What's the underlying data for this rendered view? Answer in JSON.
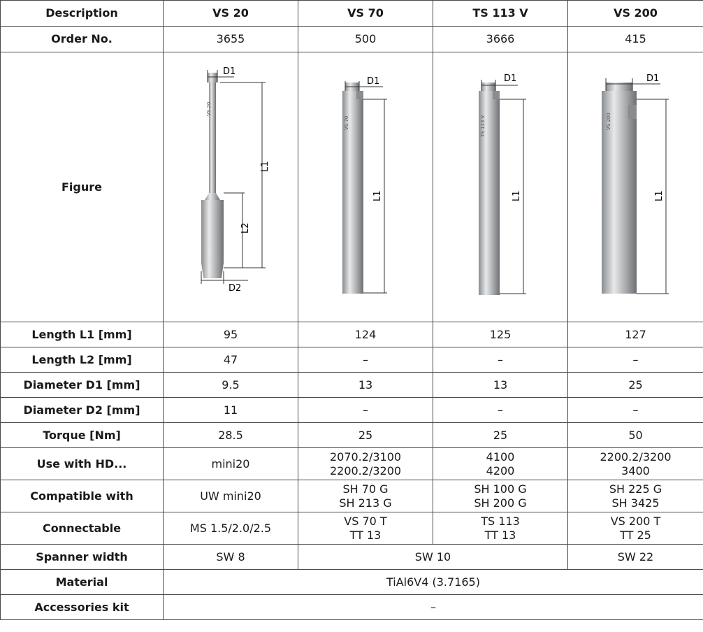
{
  "headers": [
    "Description",
    "VS 20",
    "VS 70",
    "TS 113 V",
    "VS 200"
  ],
  "order_no": {
    "label": "Order No.",
    "values": [
      "3655",
      "500",
      "3666",
      "415"
    ]
  },
  "figure": {
    "label": "Figure",
    "dim_labels": {
      "d1": "D1",
      "d2": "D2",
      "l1": "L1",
      "l2": "L2"
    },
    "engravings": {
      "vs20": "VS 20",
      "vs70": "VS 70",
      "ts113": "TS 113 V",
      "vs200": "VS 200"
    }
  },
  "rows": {
    "length_l1": {
      "label": "Length L1 [mm]",
      "values": [
        "95",
        "124",
        "125",
        "127"
      ]
    },
    "length_l2": {
      "label": "Length L2 [mm]",
      "values": [
        "47",
        "–",
        "–",
        "–"
      ]
    },
    "diameter_d1": {
      "label": "Diameter D1 [mm]",
      "values": [
        "9.5",
        "13",
        "13",
        "25"
      ]
    },
    "diameter_d2": {
      "label": "Diameter D2 [mm]",
      "values": [
        "11",
        "–",
        "–",
        "–"
      ]
    },
    "torque": {
      "label": "Torque [Nm]",
      "values": [
        "28.5",
        "25",
        "25",
        "50"
      ]
    },
    "use_with": {
      "label": "Use with HD...",
      "values": [
        [
          "mini20"
        ],
        [
          "2070.2/3100",
          "2200.2/3200"
        ],
        [
          "4100",
          "4200"
        ],
        [
          "2200.2/3200",
          "3400"
        ]
      ]
    },
    "compatible": {
      "label": "Compatible with",
      "values": [
        [
          "UW mini20"
        ],
        [
          "SH 70 G",
          "SH 213 G"
        ],
        [
          "SH 100 G",
          "SH 200 G"
        ],
        [
          "SH 225 G",
          "SH 3425"
        ]
      ]
    },
    "connectable": {
      "label": "Connectable",
      "values": [
        [
          "MS 1.5/2.0/2.5"
        ],
        [
          "VS 70 T",
          "TT 13"
        ],
        [
          "TS 113",
          "TT 13"
        ],
        [
          "VS 200 T",
          "TT 25"
        ]
      ]
    },
    "spanner": {
      "label": "Spanner width",
      "values": [
        "SW 8",
        "SW 10",
        "SW 22"
      ]
    },
    "material": {
      "label": "Material",
      "value": "TiAl6V4 (3.7165)"
    },
    "accessories": {
      "label": "Accessories kit",
      "value": "–"
    }
  }
}
